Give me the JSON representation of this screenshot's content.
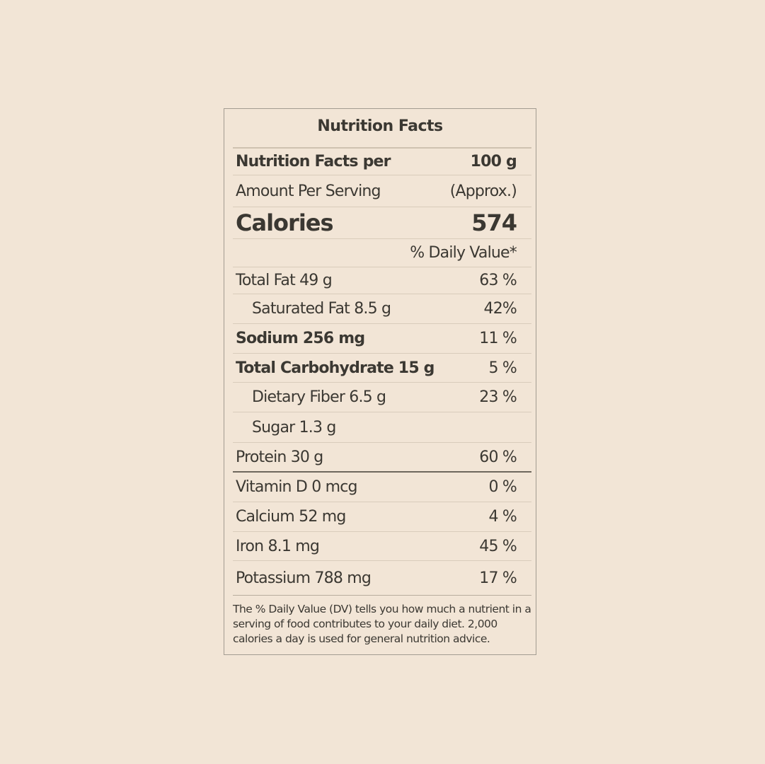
{
  "title": "Nutrition Facts",
  "per": {
    "label": "Nutrition Facts per",
    "value": "100 g"
  },
  "amount": {
    "label": "Amount Per Serving",
    "value": "(Approx.)"
  },
  "calories": {
    "label": "Calories",
    "value": "574"
  },
  "dv_header": "% Daily Value*",
  "nutrients": [
    {
      "label": "Total Fat 49 g",
      "dv": "63 %"
    },
    {
      "label": "Saturated Fat 8.5 g",
      "dv": "42%"
    },
    {
      "label": "Sodium 256 mg",
      "dv": "11 %"
    },
    {
      "label": "Total Carbohydrate 15 g",
      "dv": "5 %"
    },
    {
      "label": "Dietary Fiber 6.5 g",
      "dv": "23 %"
    },
    {
      "label": "Sugar 1.3 g",
      "dv": ""
    },
    {
      "label": "Protein 30 g",
      "dv": "60 %"
    },
    {
      "label": "Vitamin D 0 mcg",
      "dv": "0 %"
    },
    {
      "label": "Calcium 52 mg",
      "dv": "4 %"
    },
    {
      "label": "Iron 8.1 mg",
      "dv": "45 %"
    },
    {
      "label": "Potassium 788 mg",
      "dv": "17 %"
    }
  ],
  "footnote": "The % Daily Value (DV) tells you how much a nutrient in a serving of food contributes to your daily diet. 2,000 calories a day is used for general nutrition advice."
}
